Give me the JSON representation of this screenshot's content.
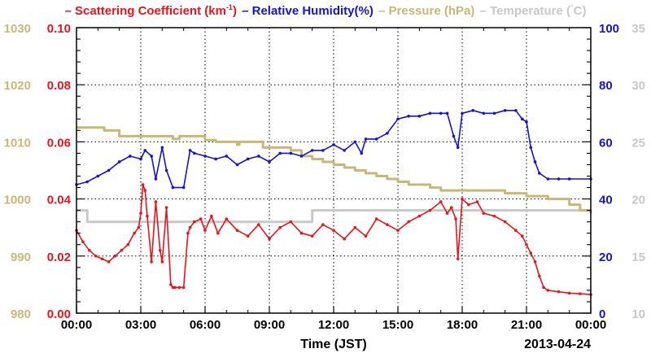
{
  "chart_data": {
    "type": "line",
    "xlabel": "Time (JST)",
    "date_label": "2013-04-24",
    "x_ticks": [
      "00:00",
      "03:00",
      "06:00",
      "09:00",
      "12:00",
      "15:00",
      "18:00",
      "21:00",
      "00:00"
    ],
    "x_range_hours": [
      0,
      24
    ],
    "grid": true,
    "legend_position": "top",
    "axes": {
      "scattering": {
        "side": "left-inner",
        "range": [
          0,
          0.1
        ],
        "ticks": [
          "0.00",
          "0.02",
          "0.04",
          "0.06",
          "0.08",
          "0.10"
        ],
        "color": "#e8141c"
      },
      "pressure": {
        "side": "left-outer",
        "range": [
          980,
          1030
        ],
        "ticks": [
          "980",
          "990",
          "1000",
          "1010",
          "1020",
          "1030"
        ],
        "color": "#c8b878"
      },
      "humidity": {
        "side": "right-inner",
        "range": [
          0,
          100
        ],
        "ticks": [
          "0",
          "20",
          "40",
          "60",
          "80",
          "100"
        ],
        "color": "#1414d2"
      },
      "temperature": {
        "side": "right-outer",
        "range": [
          10,
          35
        ],
        "ticks": [
          "10",
          "15",
          "20",
          "25",
          "30",
          "35"
        ],
        "color": "#c8c8c8"
      }
    },
    "series": [
      {
        "name": "Scattering Coefficient (km-1)",
        "legend_main": "Scattering Coefficient (km",
        "legend_sup": "-1",
        "legend_tail": ")",
        "axis": "scattering",
        "color": "#e8141c",
        "marker": "dot",
        "x": [
          0,
          0.3,
          0.6,
          0.9,
          1.2,
          1.5,
          1.8,
          2.1,
          2.4,
          2.7,
          2.9,
          3.0,
          3.1,
          3.2,
          3.3,
          3.5,
          3.7,
          3.9,
          4.0,
          4.2,
          4.4,
          4.5,
          4.6,
          4.8,
          5.0,
          5.2,
          5.3,
          5.5,
          5.8,
          6.0,
          6.3,
          6.6,
          7.0,
          7.5,
          8.0,
          8.5,
          9.0,
          9.5,
          10.0,
          10.5,
          11.0,
          11.5,
          12.0,
          12.5,
          13.0,
          13.5,
          14.0,
          14.5,
          15.0,
          15.5,
          16.0,
          16.5,
          17.0,
          17.3,
          17.5,
          17.7,
          17.8,
          18.0,
          18.3,
          18.7,
          19.0,
          19.5,
          20.0,
          20.5,
          20.8,
          21.0,
          21.2,
          21.4,
          21.6,
          21.8,
          22.0,
          22.5,
          23.0,
          23.5,
          24.0
        ],
        "y": [
          0.029,
          0.025,
          0.022,
          0.02,
          0.019,
          0.018,
          0.02,
          0.022,
          0.024,
          0.028,
          0.03,
          0.035,
          0.045,
          0.043,
          0.034,
          0.018,
          0.039,
          0.022,
          0.018,
          0.037,
          0.01,
          0.009,
          0.009,
          0.009,
          0.009,
          0.028,
          0.03,
          0.032,
          0.033,
          0.029,
          0.034,
          0.028,
          0.033,
          0.029,
          0.027,
          0.031,
          0.026,
          0.03,
          0.032,
          0.028,
          0.027,
          0.031,
          0.029,
          0.026,
          0.03,
          0.027,
          0.033,
          0.031,
          0.029,
          0.032,
          0.034,
          0.036,
          0.039,
          0.035,
          0.037,
          0.033,
          0.019,
          0.04,
          0.038,
          0.039,
          0.035,
          0.034,
          0.032,
          0.029,
          0.027,
          0.024,
          0.021,
          0.018,
          0.013,
          0.009,
          0.008,
          0.0075,
          0.007,
          0.0068,
          0.0065
        ]
      },
      {
        "name": "Relative Humidity(%)",
        "legend_main": "Relative Humidity(%)",
        "axis": "humidity",
        "color": "#1414d2",
        "marker": "dot",
        "x": [
          0,
          0.5,
          1.0,
          1.5,
          2.0,
          2.5,
          3.0,
          3.2,
          3.5,
          3.7,
          4.0,
          4.2,
          4.5,
          5.0,
          5.3,
          5.5,
          6.0,
          6.5,
          7.0,
          7.5,
          8.0,
          8.5,
          9.0,
          9.5,
          10.0,
          10.5,
          11.0,
          11.5,
          12.0,
          12.5,
          13.0,
          13.3,
          13.5,
          14.0,
          14.5,
          15.0,
          15.5,
          16.0,
          16.5,
          17.0,
          17.3,
          17.6,
          17.8,
          18.0,
          18.5,
          19.0,
          19.5,
          20.0,
          20.5,
          20.8,
          21.0,
          21.2,
          21.4,
          21.6,
          22.0,
          22.5,
          23.0,
          24.0
        ],
        "y": [
          45,
          46,
          48,
          50,
          53,
          55,
          54,
          57,
          55,
          47,
          58,
          50,
          44,
          44,
          57,
          56,
          55,
          54,
          55,
          52,
          54,
          55,
          53,
          56,
          56,
          55,
          57,
          57,
          59,
          57,
          60,
          56,
          61,
          61,
          63,
          68,
          69,
          69,
          70,
          70,
          70,
          62,
          58,
          70,
          71,
          70,
          70,
          71,
          71,
          68,
          67,
          58,
          53,
          49,
          47,
          47,
          47,
          47
        ]
      },
      {
        "name": "Pressure (hPa)",
        "legend_main": "Pressure (hPa)",
        "axis": "pressure",
        "color": "#c8b878",
        "marker": "none",
        "step": true,
        "x": [
          0,
          1.3,
          2.0,
          4.5,
          4.8,
          5.5,
          6.0,
          6.5,
          7.5,
          7.6,
          8.7,
          10.0,
          10.5,
          11.0,
          11.5,
          12.0,
          12.5,
          13.0,
          13.5,
          14.0,
          14.5,
          15.0,
          15.5,
          16.5,
          17.0,
          17.5,
          18.0,
          19.0,
          20.0,
          21.0,
          22.0,
          23.0,
          23.5,
          24.0
        ],
        "y": [
          1012.5,
          1012.0,
          1011.0,
          1010.5,
          1011.0,
          1011.0,
          1010.3,
          1010.0,
          1009.5,
          1010.0,
          1009.0,
          1008.5,
          1007.5,
          1007.0,
          1006.5,
          1006.0,
          1005.5,
          1005.0,
          1004.5,
          1004.0,
          1003.5,
          1003.0,
          1002.5,
          1002.0,
          1001.5,
          1001.5,
          1001.5,
          1001.5,
          1001.0,
          1000.5,
          1000.0,
          999.0,
          998.0,
          997.5
        ]
      },
      {
        "name": "Temperature (°C)",
        "legend_main": "Temperature (",
        "legend_sup": "°",
        "legend_tail": "C)",
        "axis": "temperature",
        "color": "#c8c8c8",
        "marker": "none",
        "step": true,
        "x": [
          0,
          0.5,
          10.5,
          11.0,
          11.3,
          12.5,
          13.0,
          18.5,
          19.0,
          24.0
        ],
        "y": [
          19.0,
          18.0,
          18.0,
          19.0,
          19.0,
          19.0,
          19.0,
          19.0,
          19.0,
          19.0
        ]
      }
    ]
  }
}
